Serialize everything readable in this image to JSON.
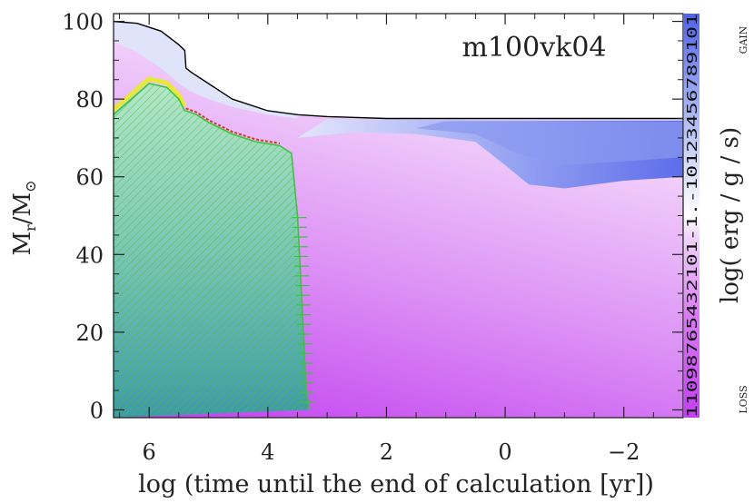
{
  "chart_data": {
    "type": "heatmap",
    "title": "m100vk04",
    "xlabel": "log (time until the end of calculation [yr])",
    "ylabel_main": "M",
    "ylabel_sub_r": "r",
    "ylabel_slash": "/M",
    "ylabel_sub_sun": "⊙",
    "xlim": [
      6.6,
      -3.0
    ],
    "ylim": [
      -2,
      102
    ],
    "x_ticks": [
      6,
      4,
      2,
      0,
      -2
    ],
    "x_tick_labels": [
      "6",
      "4",
      "2",
      "0",
      "−2"
    ],
    "y_ticks": [
      0,
      20,
      40,
      60,
      80,
      100
    ],
    "y_tick_labels": [
      "0",
      "20",
      "40",
      "60",
      "80",
      "100"
    ],
    "colorbar": {
      "label": "log( erg / g / s)",
      "top_label": "GAIN",
      "bottom_label": "LOSS",
      "tick_strip_text": "11098765432101-1.-10123456789101",
      "colors": [
        "#c23ff0",
        "#d070f2",
        "#e2a9f7",
        "#f2d6fb",
        "#ffffff",
        "#dfe3fb",
        "#aab6f3",
        "#7e8ef0",
        "#4f62ea"
      ]
    },
    "total_mass_boundary": {
      "x": [
        6.6,
        6.2,
        5.8,
        5.5,
        5.4,
        5.38,
        5.3,
        5.0,
        4.6,
        4.0,
        3.5,
        3.0,
        2.0,
        1.0,
        0.0,
        -1.0,
        -2.0,
        -3.0
      ],
      "y": [
        100,
        99.5,
        97.5,
        94,
        92.5,
        88,
        87,
        84,
        80,
        77,
        76,
        75.5,
        75,
        75,
        75,
        75,
        75,
        75
      ]
    },
    "convective_core_boundary": {
      "x": [
        6.6,
        6.3,
        6.0,
        5.7,
        5.5,
        5.4,
        5.38,
        5.2,
        5.0,
        4.6,
        4.2,
        3.8,
        3.6,
        3.5,
        3.45,
        3.4,
        3.35,
        3.3
      ],
      "y": [
        76,
        80,
        84,
        83,
        80,
        77,
        77,
        76,
        74,
        71,
        69,
        68,
        66,
        50,
        35,
        20,
        5,
        0
      ]
    },
    "colors": {
      "convection_hatch": "#35c93a",
      "overshoot": "#e8e83a",
      "semiconvection": "#d43a1a",
      "boundary_line": "#000000"
    }
  }
}
